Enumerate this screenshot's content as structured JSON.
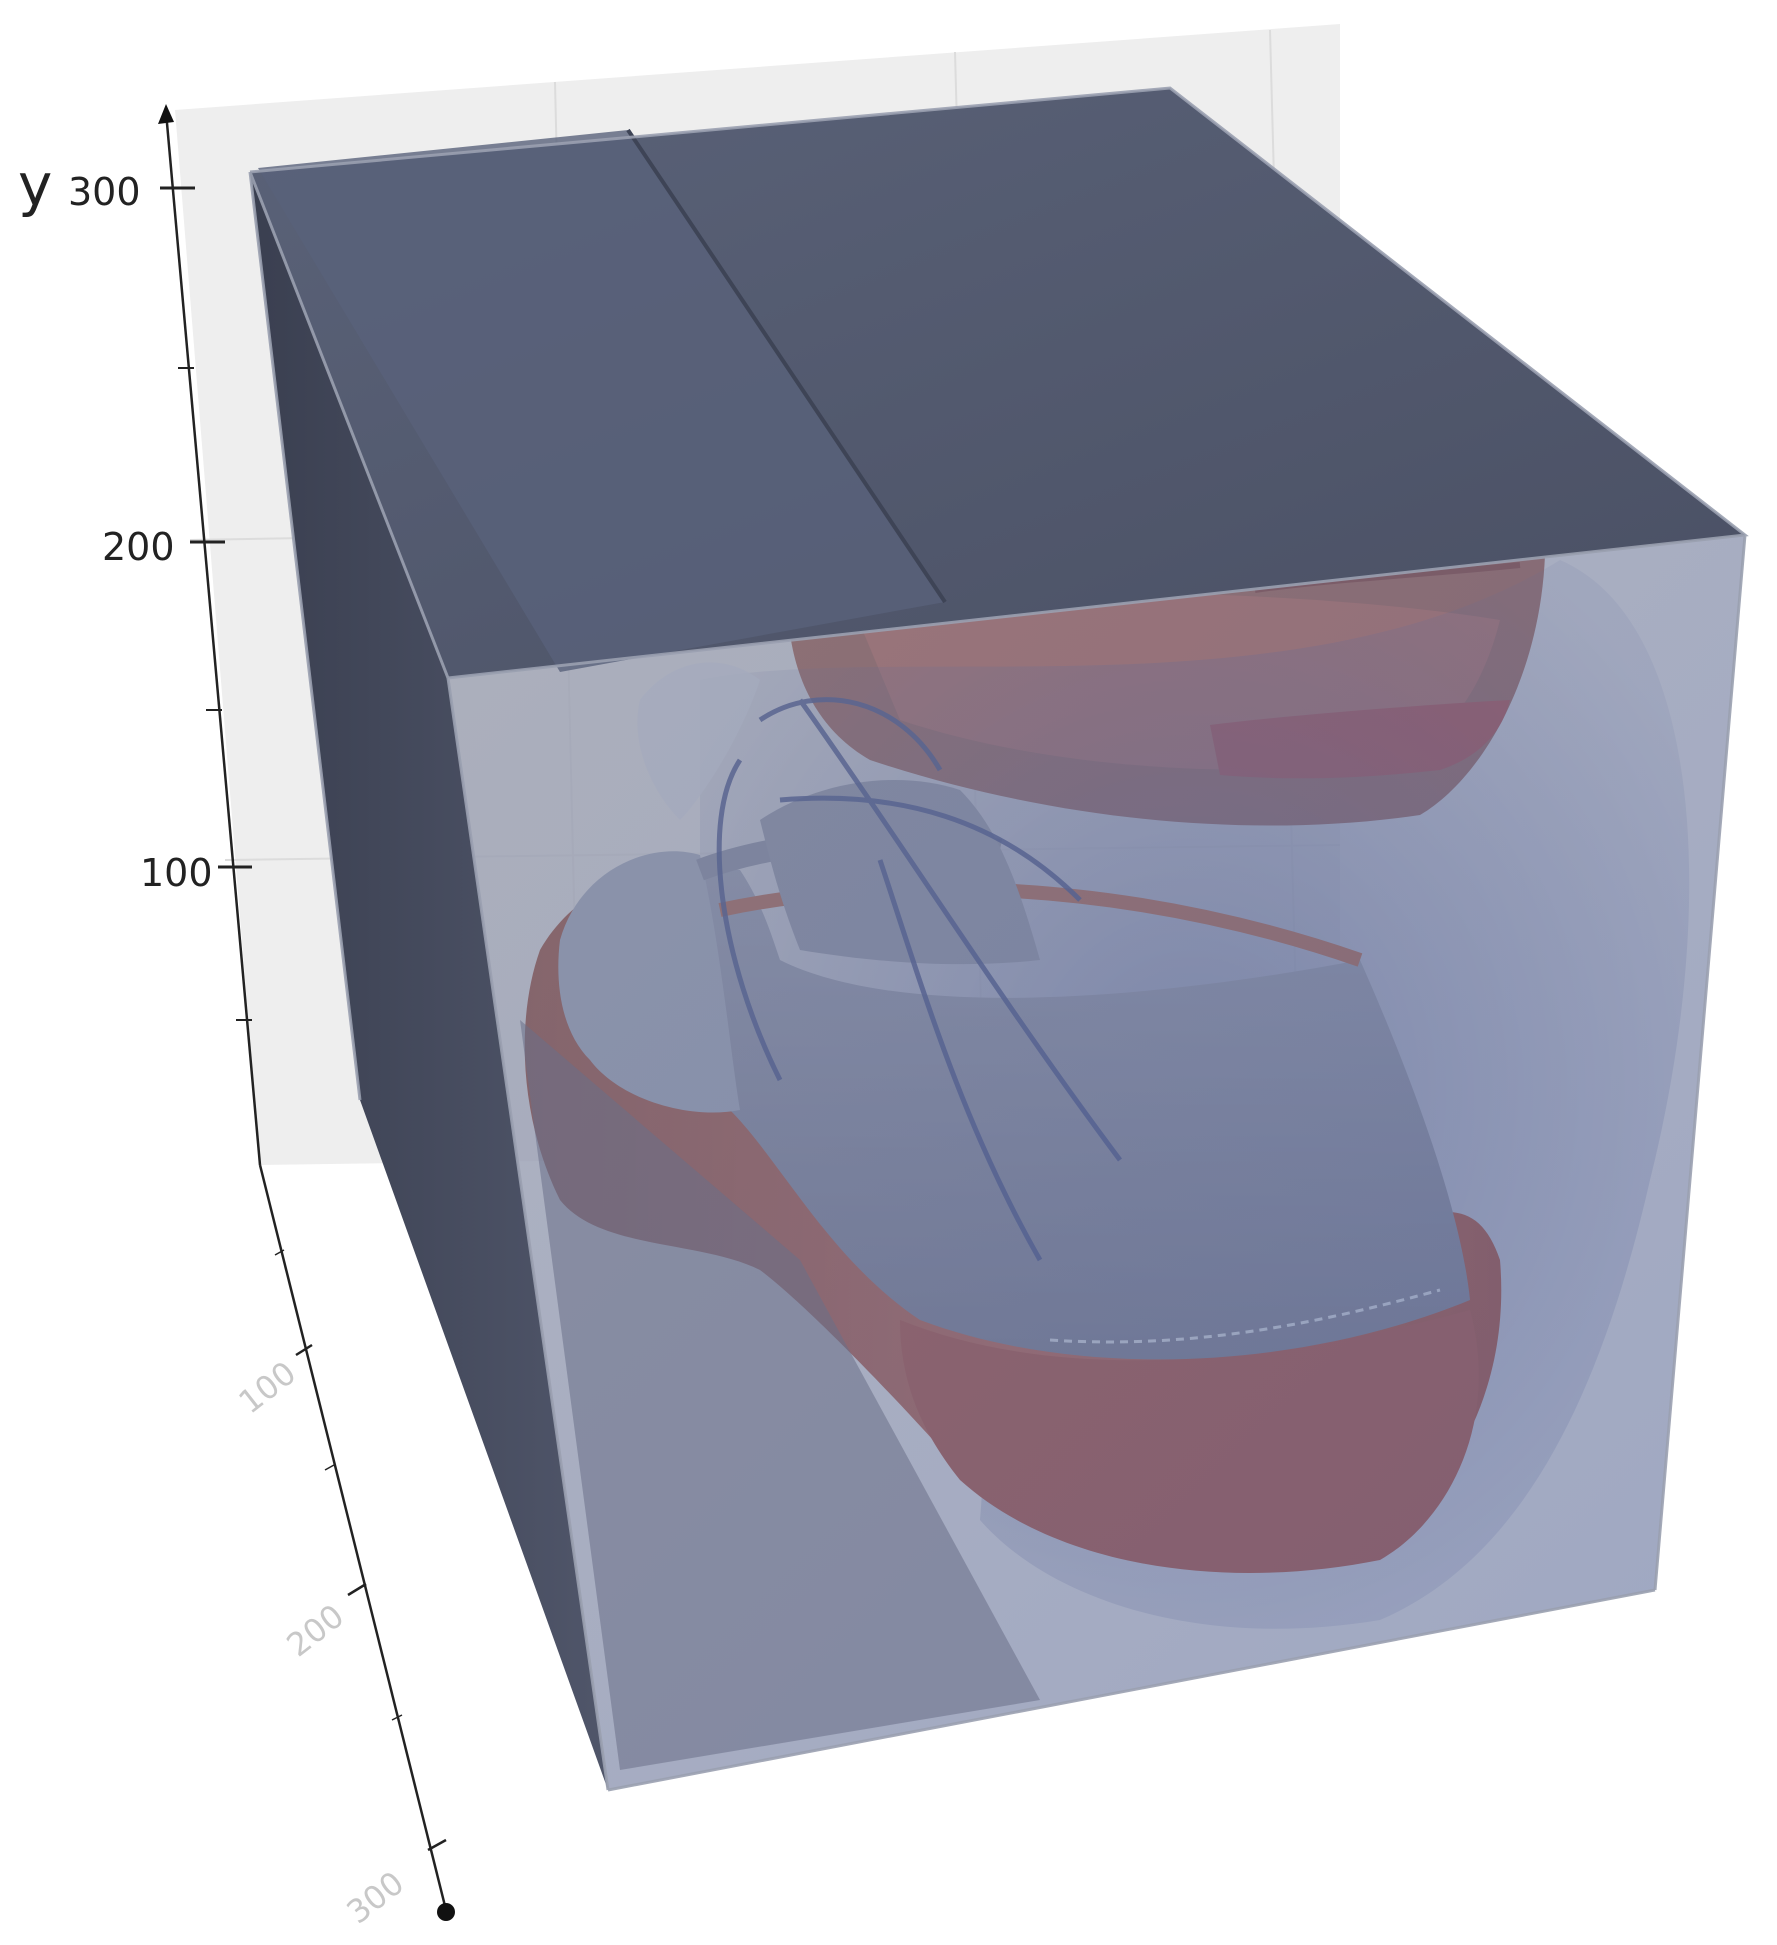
{
  "axes": {
    "y": {
      "label": "y",
      "ticks": [
        "300",
        "200",
        "100"
      ]
    },
    "depth": {
      "ticks": [
        "100",
        "200",
        "300"
      ]
    }
  },
  "volume": {
    "subject": "shoe-in-box",
    "colors": {
      "box": "#5c6478",
      "box_dark": "#3e4456",
      "leather": "#b8604e",
      "sole": "#a84a3e",
      "upper": "#8a90a8",
      "lace": "#3b4a8a",
      "backdrop": "#eeeeee",
      "grid": "#dcdcdc"
    }
  }
}
